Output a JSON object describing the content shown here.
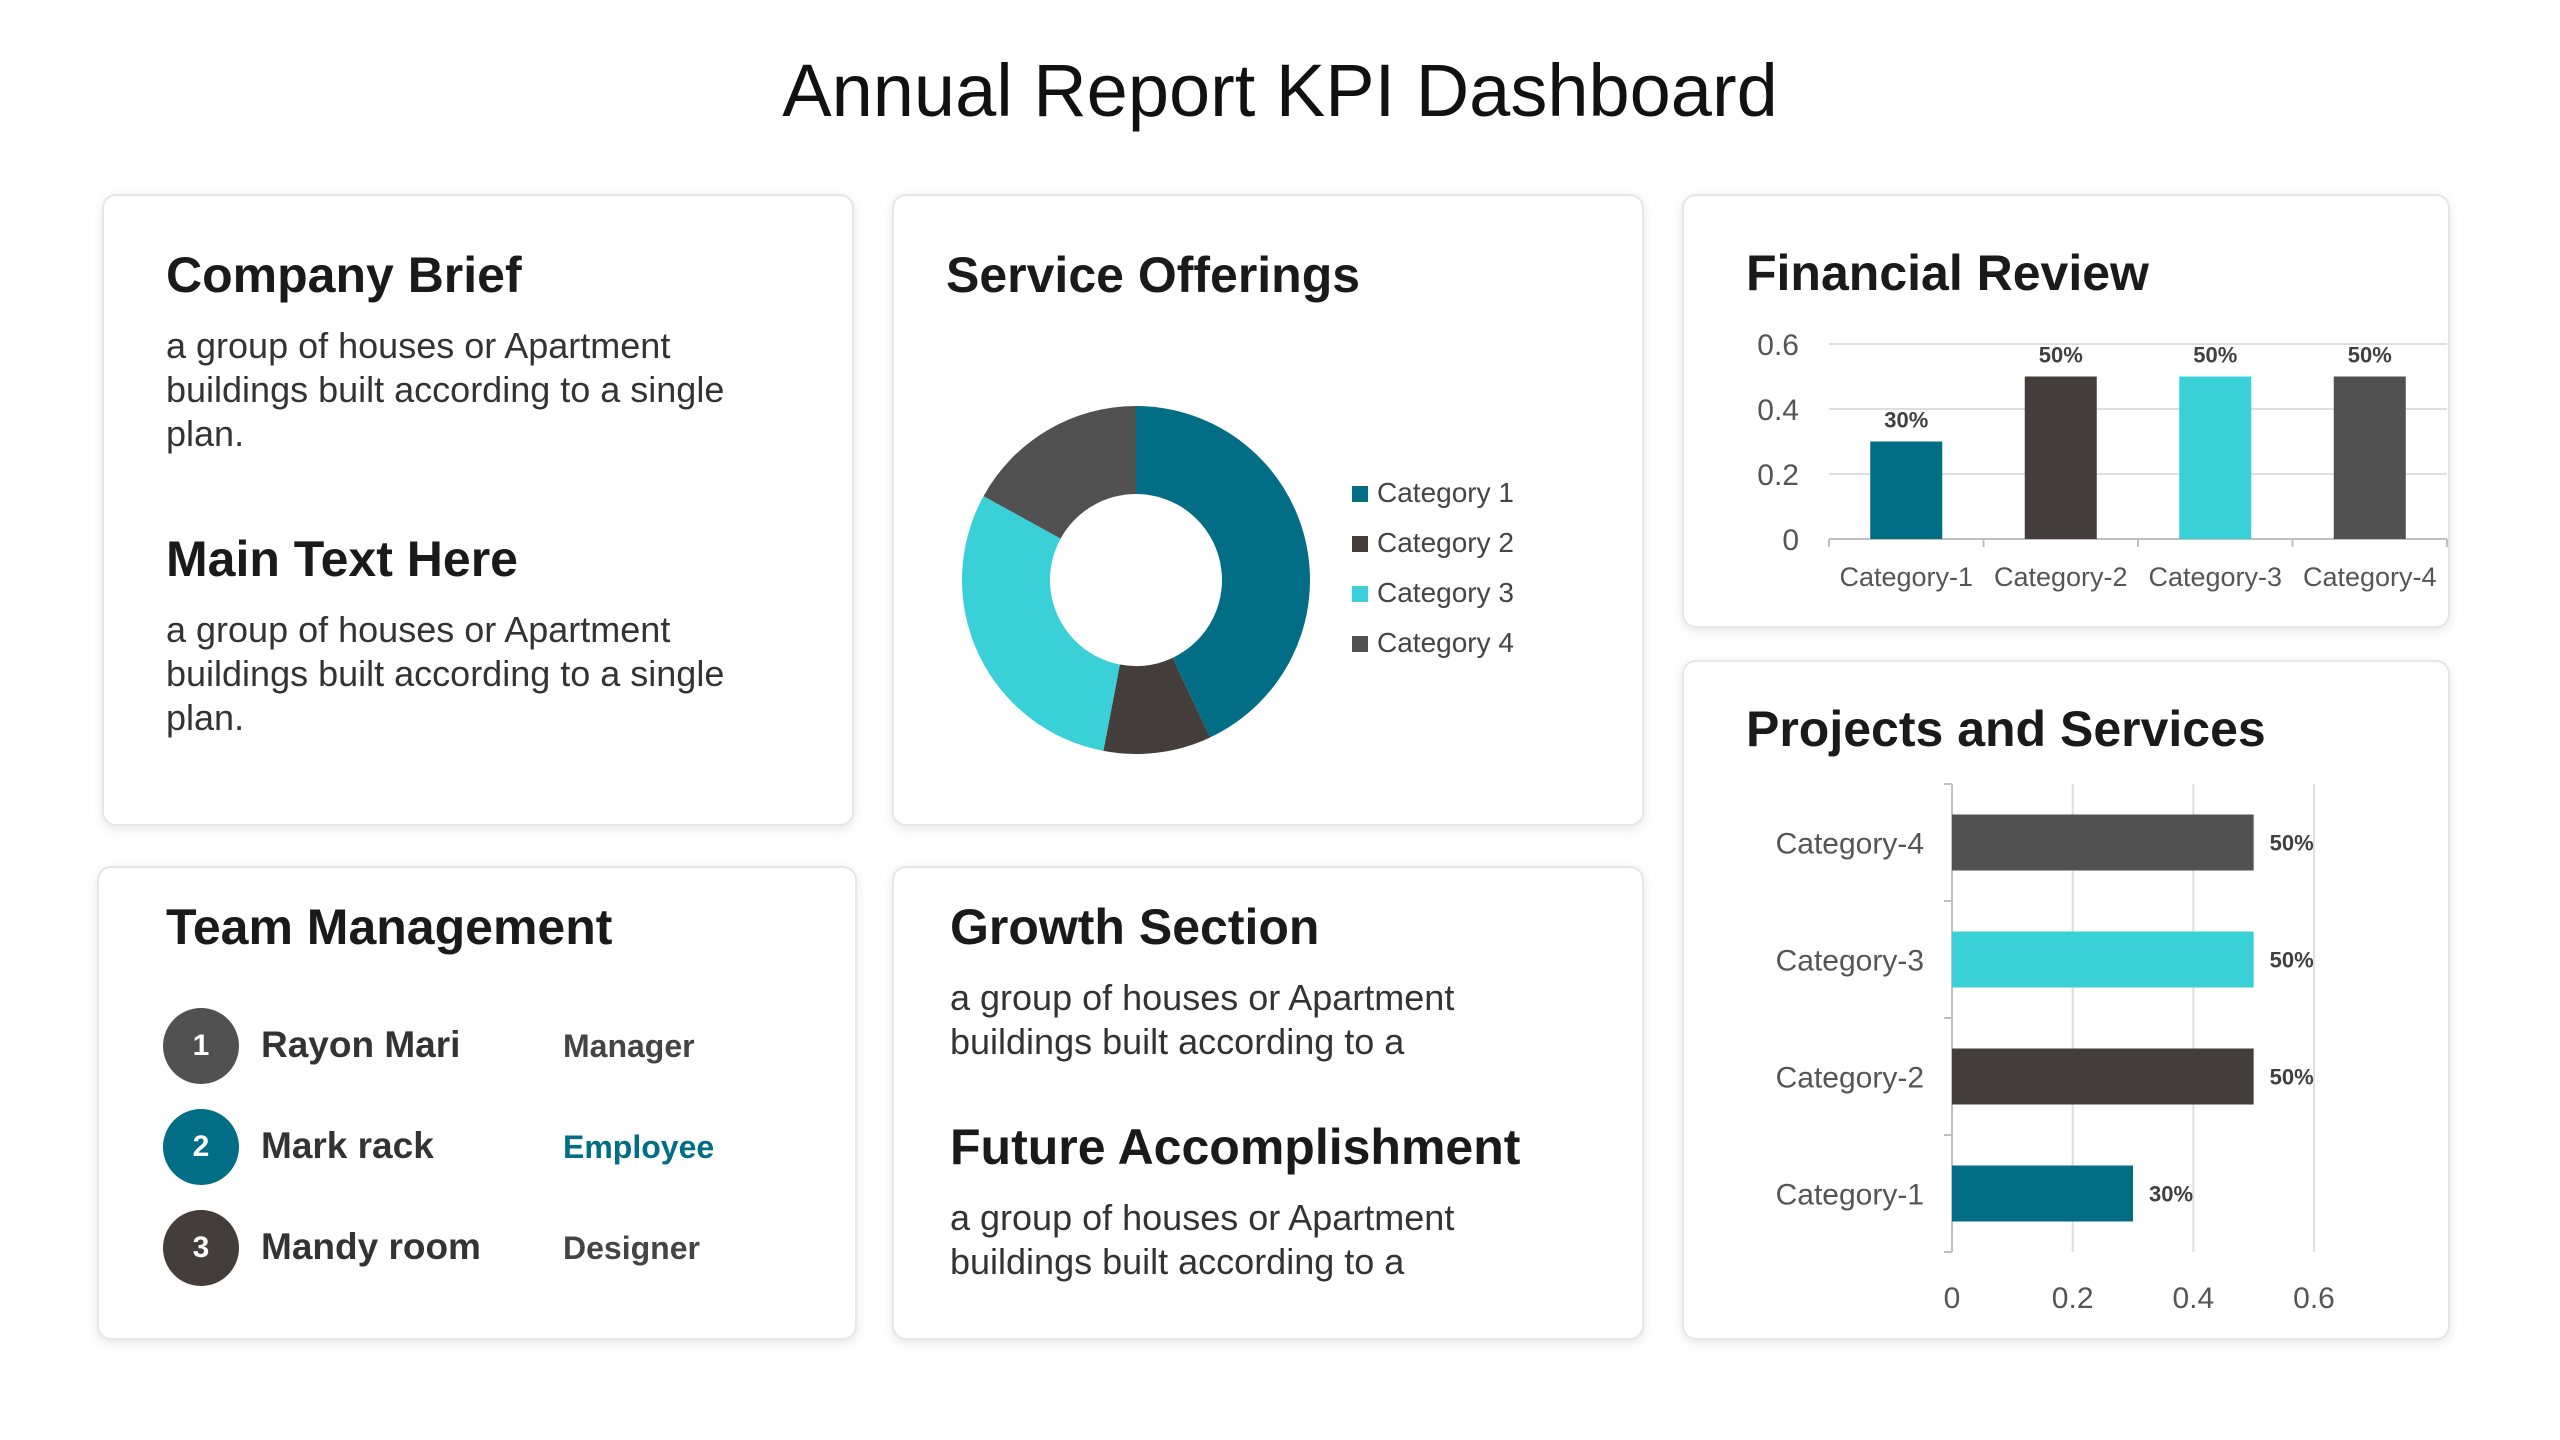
{
  "title": "Annual Report KPI Dashboard",
  "company_brief": {
    "heading": "Company Brief",
    "text": "a group of houses or Apartment buildings built according to a single plan.",
    "heading2": "Main Text Here",
    "text2": "a group of houses or Apartment buildings built according to a single plan."
  },
  "service_offerings": {
    "heading": "Service Offerings"
  },
  "financial_review": {
    "heading": "Financial Review"
  },
  "projects_services": {
    "heading": "Projects and Services"
  },
  "team": {
    "heading": "Team Management",
    "members": [
      {
        "num": "1",
        "name": "Rayon Mari",
        "role": "Manager",
        "circle_color": "#515151",
        "role_color": "#444444"
      },
      {
        "num": "2",
        "name": "Mark rack",
        "role": "Employee",
        "circle_color": "#016e85",
        "role_color": "#016e85"
      },
      {
        "num": "3",
        "name": "Mandy room",
        "role": "Designer",
        "circle_color": "#433d3b",
        "role_color": "#444444"
      }
    ]
  },
  "growth": {
    "heading": "Growth Section",
    "text": "a group of houses or Apartment buildings built according to a",
    "heading2": "Future Accomplishment",
    "text2": "a group of houses or Apartment buildings built according to a"
  },
  "chart_data": [
    {
      "type": "pie",
      "style": "donut",
      "title": "Service Offerings",
      "categories": [
        "Category 1",
        "Category 2",
        "Category 3",
        "Category 4"
      ],
      "values": [
        43,
        10,
        30,
        17
      ],
      "colors": [
        "#016e85",
        "#433d3b",
        "#3ad0d8",
        "#515151"
      ],
      "legend": "right"
    },
    {
      "type": "bar",
      "title": "Financial Review",
      "categories": [
        "Category-1",
        "Category-2",
        "Category-3",
        "Category-4"
      ],
      "values": [
        0.3,
        0.5,
        0.5,
        0.5
      ],
      "data_labels": [
        "30%",
        "50%",
        "50%",
        "50%"
      ],
      "colors": [
        "#016e85",
        "#433d3b",
        "#3ad0d8",
        "#515151"
      ],
      "yticks": [
        "0",
        "0.2",
        "0.4",
        "0.6"
      ],
      "ylim": [
        0,
        0.6
      ],
      "grid": true
    },
    {
      "type": "bar",
      "orientation": "horizontal",
      "title": "Projects and Services",
      "categories": [
        "Category-1",
        "Category-2",
        "Category-3",
        "Category-4"
      ],
      "values": [
        0.3,
        0.5,
        0.5,
        0.5
      ],
      "data_labels": [
        "30%",
        "50%",
        "50%",
        "50%"
      ],
      "colors": [
        "#016e85",
        "#433d3b",
        "#3ad0d8",
        "#515151"
      ],
      "xticks": [
        "0",
        "0.2",
        "0.4",
        "0.6"
      ],
      "xlim": [
        0,
        0.6
      ],
      "grid": true
    }
  ]
}
